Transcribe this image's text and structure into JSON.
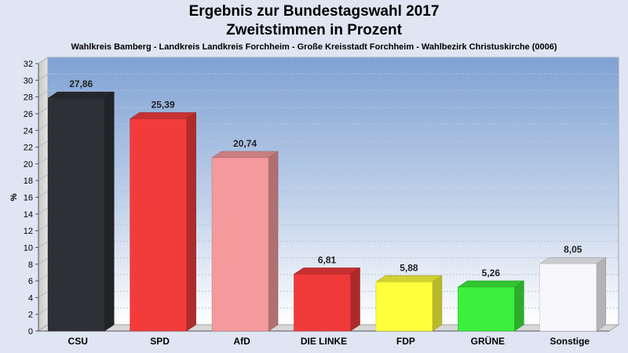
{
  "chart_data": {
    "type": "bar",
    "title": "Ergebnis zur Bundestagswahl 2017",
    "subtitle": "Zweitstimmen in Prozent",
    "subtitle2": "Wahlkreis Bamberg - Landkreis Landkreis Forchheim - Große Kreisstadt Forchheim - Wahlbezirk Christuskirche (0006)",
    "xlabel": "",
    "ylabel": "%",
    "ylim": [
      0,
      32
    ],
    "yticks": [
      0,
      2,
      4,
      6,
      8,
      10,
      12,
      14,
      16,
      18,
      20,
      22,
      24,
      26,
      28,
      30,
      32
    ],
    "grid": true,
    "categories": [
      "CSU",
      "SPD",
      "AfD",
      "DIE LINKE",
      "FDP",
      "GRÜNE",
      "Sonstige"
    ],
    "values": [
      27.86,
      25.39,
      20.74,
      6.81,
      5.88,
      5.26,
      8.05
    ],
    "value_labels": [
      "27,86",
      "25,39",
      "20,74",
      "6,81",
      "5,88",
      "5,26",
      "8,05"
    ],
    "colors": [
      "#2e3036",
      "#f23c3c",
      "#f59a9c",
      "#f03a3a",
      "#ffff3c",
      "#3cf03c",
      "#f8f8fc"
    ]
  }
}
